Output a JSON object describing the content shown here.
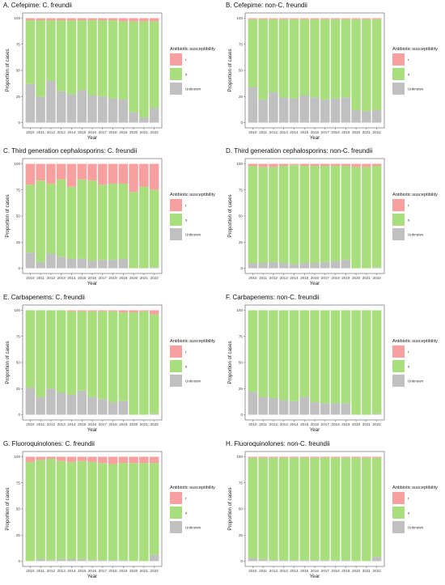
{
  "colors": {
    "r": "#f8a0a0",
    "s": "#a8de7c",
    "unknown": "#c0c0c0"
  },
  "chart_data": [
    {
      "type": "bar",
      "title": "A. Cefepime: C. freundii",
      "xlabel": "Year",
      "ylabel": "Proportion of cases",
      "categories": [
        "2010",
        "2011",
        "2012",
        "2013",
        "2014",
        "2015",
        "2016",
        "2017",
        "2018",
        "2019",
        "2020",
        "2021",
        "2022"
      ],
      "ylim": [
        0,
        100
      ],
      "yticks": [
        "0",
        "25",
        "50",
        "75",
        "100"
      ],
      "legend": {
        "title": "Antibiotic susceptibility",
        "position": "right",
        "labels": [
          "r",
          "s",
          "Unknown"
        ]
      },
      "series": [
        {
          "name": "Unknown",
          "values": [
            37,
            25,
            40,
            30,
            27,
            31,
            26,
            25,
            23,
            22,
            10,
            5,
            14
          ]
        },
        {
          "name": "s",
          "values": [
            61,
            73,
            58,
            68,
            71,
            67,
            72,
            73,
            75,
            75,
            87,
            92,
            83
          ]
        },
        {
          "name": "r",
          "values": [
            2,
            2,
            2,
            2,
            2,
            2,
            2,
            2,
            2,
            3,
            3,
            3,
            3
          ]
        }
      ]
    },
    {
      "type": "bar",
      "title": "B. Cefepime: non-C. freundii",
      "xlabel": "Year",
      "ylabel": "Proportion of cases",
      "categories": [
        "2010",
        "2011",
        "2012",
        "2013",
        "2014",
        "2015",
        "2016",
        "2017",
        "2018",
        "2019",
        "2020",
        "2021",
        "2022"
      ],
      "ylim": [
        0,
        100
      ],
      "yticks": [
        "0",
        "25",
        "50",
        "75",
        "100"
      ],
      "legend": {
        "title": "Antibiotic susceptibility",
        "position": "right",
        "labels": [
          "r",
          "s",
          "Unknown"
        ]
      },
      "series": [
        {
          "name": "Unknown",
          "values": [
            34,
            22,
            29,
            24,
            23,
            26,
            24,
            22,
            23,
            24,
            12,
            11,
            12
          ]
        },
        {
          "name": "s",
          "values": [
            65,
            77,
            70,
            75,
            76,
            73,
            75,
            77,
            76,
            75,
            87,
            88,
            87
          ]
        },
        {
          "name": "r",
          "values": [
            1,
            1,
            1,
            1,
            1,
            1,
            1,
            1,
            1,
            1,
            1,
            1,
            1
          ]
        }
      ]
    },
    {
      "type": "bar",
      "title": "C. Third generation cephalosporins: C. freundii",
      "xlabel": "Year",
      "ylabel": "Proportion of cases",
      "categories": [
        "2010",
        "2011",
        "2012",
        "2013",
        "2014",
        "2015",
        "2016",
        "2017",
        "2018",
        "2019",
        "2020",
        "2021",
        "2022"
      ],
      "ylim": [
        0,
        100
      ],
      "yticks": [
        "0",
        "25",
        "50",
        "75",
        "100"
      ],
      "legend": {
        "title": "Antibiotic susceptibility",
        "position": "right",
        "labels": [
          "r",
          "s",
          "Unknown"
        ]
      },
      "series": [
        {
          "name": "Unknown",
          "values": [
            15,
            6,
            14,
            11,
            9,
            9,
            7,
            8,
            8,
            9,
            0,
            0,
            1
          ]
        },
        {
          "name": "s",
          "values": [
            65,
            78,
            67,
            74,
            69,
            76,
            77,
            72,
            73,
            72,
            73,
            78,
            74
          ]
        },
        {
          "name": "r",
          "values": [
            20,
            16,
            19,
            15,
            22,
            15,
            16,
            20,
            19,
            19,
            27,
            22,
            25
          ]
        }
      ]
    },
    {
      "type": "bar",
      "title": "D. Third generation cephalosporins: non-C. freundii",
      "xlabel": "Year",
      "ylabel": "Proportion of cases",
      "categories": [
        "2010",
        "2011",
        "2012",
        "2013",
        "2014",
        "2015",
        "2016",
        "2017",
        "2018",
        "2019",
        "2020",
        "2021",
        "2022"
      ],
      "ylim": [
        0,
        100
      ],
      "yticks": [
        "0",
        "25",
        "50",
        "75",
        "100"
      ],
      "legend": {
        "title": "Antibiotic susceptibility",
        "position": "right",
        "labels": [
          "r",
          "s",
          "Unknown"
        ]
      },
      "series": [
        {
          "name": "Unknown",
          "values": [
            5,
            5,
            6,
            5,
            4,
            5,
            5,
            6,
            7,
            8,
            0,
            0,
            1
          ]
        },
        {
          "name": "s",
          "values": [
            93,
            92,
            91,
            93,
            95,
            93,
            93,
            92,
            91,
            90,
            97,
            97,
            97
          ]
        },
        {
          "name": "r",
          "values": [
            2,
            3,
            3,
            2,
            1,
            2,
            2,
            2,
            2,
            2,
            3,
            3,
            2
          ]
        }
      ]
    },
    {
      "type": "bar",
      "title": "E. Carbapenems: C. freundii",
      "xlabel": "Year",
      "ylabel": "Proportion of cases",
      "categories": [
        "2010",
        "2011",
        "2012",
        "2013",
        "2014",
        "2015",
        "2016",
        "2017",
        "2018",
        "2019",
        "2020",
        "2021",
        "2022"
      ],
      "ylim": [
        0,
        100
      ],
      "yticks": [
        "0",
        "25",
        "50",
        "75",
        "100"
      ],
      "legend": {
        "title": "Antibiotic susceptibility",
        "position": "right",
        "labels": [
          "r",
          "s",
          "Unknown"
        ]
      },
      "series": [
        {
          "name": "Unknown",
          "values": [
            26,
            17,
            25,
            21,
            19,
            23,
            17,
            15,
            12,
            13,
            0,
            0,
            1
          ]
        },
        {
          "name": "s",
          "values": [
            74,
            83,
            75,
            79,
            80,
            76,
            82,
            84,
            87,
            85,
            98,
            99,
            95
          ]
        },
        {
          "name": "r",
          "values": [
            0,
            0,
            0,
            0,
            1,
            1,
            1,
            1,
            1,
            2,
            2,
            1,
            4
          ]
        }
      ]
    },
    {
      "type": "bar",
      "title": "F. Carbapenems: non-C. freundii",
      "xlabel": "Year",
      "ylabel": "Proportion of cases",
      "categories": [
        "2010",
        "2011",
        "2012",
        "2013",
        "2014",
        "2015",
        "2016",
        "2017",
        "2018",
        "2019",
        "2020",
        "2021",
        "2022"
      ],
      "ylim": [
        0,
        100
      ],
      "yticks": [
        "0",
        "25",
        "50",
        "75",
        "100"
      ],
      "legend": {
        "title": "Antibiotic susceptibility",
        "position": "right",
        "labels": [
          "r",
          "s",
          "Unknown"
        ]
      },
      "series": [
        {
          "name": "Unknown",
          "values": [
            22,
            17,
            16,
            14,
            13,
            17,
            12,
            11,
            11,
            11,
            0,
            0,
            1
          ]
        },
        {
          "name": "s",
          "values": [
            78,
            83,
            84,
            86,
            87,
            83,
            88,
            89,
            89,
            89,
            100,
            100,
            99
          ]
        },
        {
          "name": "r",
          "values": [
            0,
            0,
            0,
            0,
            0,
            0,
            0,
            0,
            0,
            0,
            0,
            0,
            0
          ]
        }
      ]
    },
    {
      "type": "bar",
      "title": "G. Fluoroquinolones: C. freundii",
      "xlabel": "Year",
      "ylabel": "Proportion of cases",
      "categories": [
        "2010",
        "2011",
        "2012",
        "2013",
        "2014",
        "2015",
        "2016",
        "2017",
        "2018",
        "2019",
        "2020",
        "2021",
        "2022"
      ],
      "ylim": [
        0,
        100
      ],
      "yticks": [
        "0",
        "25",
        "50",
        "75",
        "100"
      ],
      "legend": {
        "title": "Antibiotic susceptibility",
        "position": "right",
        "labels": [
          "r",
          "s",
          "Unknown"
        ]
      },
      "series": [
        {
          "name": "Unknown",
          "values": [
            0,
            2,
            1,
            2,
            2,
            2,
            1,
            1,
            1,
            1,
            0,
            0,
            6
          ]
        },
        {
          "name": "s",
          "values": [
            95,
            95,
            97,
            94,
            93,
            94,
            94,
            93,
            92,
            93,
            94,
            94,
            88
          ]
        },
        {
          "name": "r",
          "values": [
            5,
            3,
            2,
            4,
            5,
            4,
            5,
            6,
            7,
            6,
            6,
            6,
            6
          ]
        }
      ]
    },
    {
      "type": "bar",
      "title": "H. Fluoroquinolones: non-C. freundii",
      "xlabel": "Year",
      "ylabel": "Proportion of cases",
      "categories": [
        "2010",
        "2011",
        "2012",
        "2013",
        "2014",
        "2015",
        "2016",
        "2017",
        "2018",
        "2019",
        "2020",
        "2021",
        "2022"
      ],
      "ylim": [
        0,
        100
      ],
      "yticks": [
        "0",
        "25",
        "50",
        "75",
        "100"
      ],
      "legend": {
        "title": "Antibiotic susceptibility",
        "position": "right",
        "labels": [
          "r",
          "s",
          "Unknown"
        ]
      },
      "series": [
        {
          "name": "Unknown",
          "values": [
            3,
            2,
            1,
            1,
            1,
            1,
            1,
            1,
            1,
            1,
            0,
            0,
            4
          ]
        },
        {
          "name": "s",
          "values": [
            96,
            97,
            98,
            98,
            98,
            98,
            98,
            98,
            98,
            98,
            99,
            99,
            95
          ]
        },
        {
          "name": "r",
          "values": [
            1,
            1,
            1,
            1,
            1,
            1,
            1,
            1,
            1,
            1,
            1,
            1,
            1
          ]
        }
      ]
    }
  ]
}
